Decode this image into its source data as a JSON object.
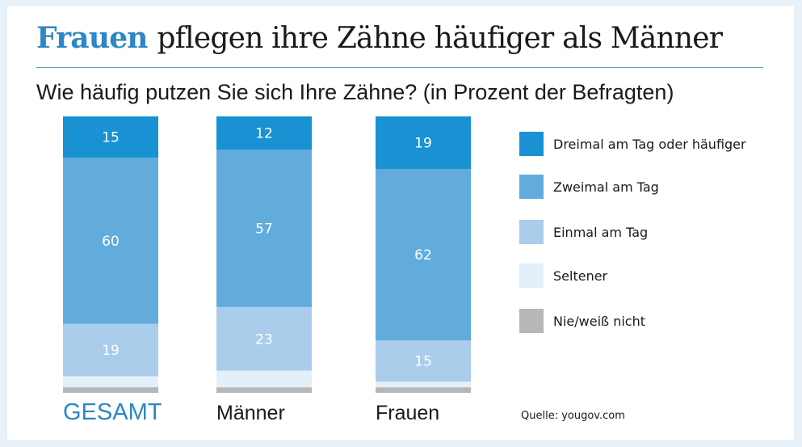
{
  "title_highlight": "Frauen",
  "title_rest": "pflegen ihre Zähne häufiger als Männer",
  "subtitle": "Wie häufig putzen Sie sich Ihre Zähne? (in Prozent der Befragten)",
  "source": "Quelle: yougov.com",
  "chart_data": {
    "type": "bar",
    "stacked": true,
    "title": "Frauen pflegen ihre Zähne häufiger als Männer",
    "subtitle": "Wie häufig putzen Sie sich Ihre Zähne? (in Prozent der Befragten)",
    "categories": [
      "GESAMT",
      "Männer",
      "Frauen"
    ],
    "highlight_category": "GESAMT",
    "series": [
      {
        "name": "Dreimal am Tag oder häufiger",
        "color": "#1892d2",
        "values": [
          15,
          12,
          19
        ],
        "labeled": true
      },
      {
        "name": "Zweimal am Tag",
        "color": "#62acdc",
        "values": [
          60,
          57,
          62
        ],
        "labeled": true
      },
      {
        "name": "Einmal am Tag",
        "color": "#a9cdeb",
        "values": [
          19,
          23,
          15
        ],
        "labeled": true
      },
      {
        "name": "Seltener",
        "color": "#e4f0f9",
        "values": [
          4,
          6,
          2
        ],
        "labeled": false
      },
      {
        "name": "Nie/weiß nicht",
        "color": "#b7b7b7",
        "values": [
          2,
          2,
          2
        ],
        "labeled": false
      }
    ],
    "ylim": [
      0,
      100
    ],
    "grid": false,
    "legend_position": "right"
  }
}
